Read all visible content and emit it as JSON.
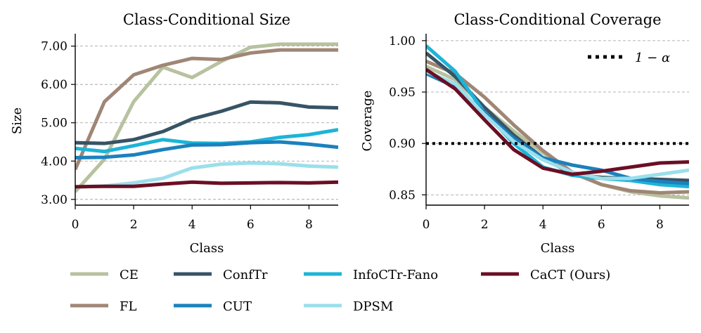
{
  "chart_data": [
    {
      "type": "line",
      "title": "Class-Conditional Size",
      "xlabel": "Class",
      "ylabel": "Size",
      "xlim": [
        0,
        9
      ],
      "ylim": [
        2.85,
        7.25
      ],
      "xticks": [
        0,
        2,
        4,
        6,
        8
      ],
      "xtick_labels": [
        "0",
        "2",
        "4",
        "6",
        "8"
      ],
      "yticks": [
        3.0,
        4.0,
        5.0,
        6.0,
        7.0
      ],
      "ytick_labels": [
        "3.00",
        "4.00",
        "5.00",
        "6.00",
        "7.00"
      ],
      "grid": "horizontal dashed",
      "x": [
        0,
        1,
        2,
        3,
        4,
        5,
        6,
        7,
        8,
        9
      ],
      "series": [
        {
          "name": "CE",
          "color": "#b7c29f",
          "values": [
            3.2,
            4.05,
            5.55,
            6.45,
            6.18,
            6.6,
            6.97,
            7.05,
            7.05,
            7.05
          ]
        },
        {
          "name": "FL",
          "color": "#a08675",
          "values": [
            3.78,
            5.55,
            6.25,
            6.5,
            6.68,
            6.65,
            6.82,
            6.9,
            6.9,
            6.9
          ]
        },
        {
          "name": "ConfTr",
          "color": "#375466",
          "values": [
            4.48,
            4.46,
            4.56,
            4.77,
            5.1,
            5.3,
            5.54,
            5.52,
            5.41,
            5.39
          ]
        },
        {
          "name": "InfoCTr-Fano",
          "color": "#1cb4d8",
          "values": [
            4.33,
            4.25,
            4.4,
            4.56,
            4.47,
            4.46,
            4.5,
            4.62,
            4.69,
            4.82
          ]
        },
        {
          "name": "CUT",
          "color": "#1b81bd",
          "values": [
            4.09,
            4.1,
            4.16,
            4.3,
            4.42,
            4.43,
            4.48,
            4.5,
            4.44,
            4.36
          ]
        },
        {
          "name": "DPSM",
          "color": "#9bdfeb",
          "values": [
            3.32,
            3.35,
            3.43,
            3.55,
            3.82,
            3.92,
            3.95,
            3.93,
            3.87,
            3.84
          ]
        },
        {
          "name": "CaCT (Ours)",
          "color": "#6b0f24",
          "values": [
            3.33,
            3.34,
            3.34,
            3.4,
            3.45,
            3.42,
            3.43,
            3.44,
            3.43,
            3.45
          ]
        }
      ]
    },
    {
      "type": "line",
      "title": "Class-Conditional Coverage",
      "xlabel": "Class",
      "ylabel": "Coverage",
      "xlim": [
        0,
        9
      ],
      "ylim": [
        0.84,
        1.004
      ],
      "xticks": [
        0,
        2,
        4,
        6,
        8
      ],
      "xtick_labels": [
        "0",
        "2",
        "4",
        "6",
        "8"
      ],
      "yticks": [
        0.85,
        0.9,
        0.95,
        1.0
      ],
      "ytick_labels": [
        "0.85",
        "0.90",
        "0.95",
        "1.00"
      ],
      "grid": "horizontal dashed",
      "reference_line": {
        "label": "1 − α",
        "value": 0.9
      },
      "x": [
        0,
        1,
        2,
        3,
        4,
        5,
        6,
        7,
        8,
        9
      ],
      "series": [
        {
          "name": "CE",
          "color": "#b7c29f",
          "values": [
            0.975,
            0.962,
            0.935,
            0.912,
            0.891,
            0.871,
            0.86,
            0.853,
            0.849,
            0.847
          ]
        },
        {
          "name": "FL",
          "color": "#a08675",
          "values": [
            0.98,
            0.968,
            0.945,
            0.918,
            0.893,
            0.872,
            0.86,
            0.854,
            0.852,
            0.853
          ]
        },
        {
          "name": "ConfTr",
          "color": "#375466",
          "values": [
            0.988,
            0.965,
            0.935,
            0.908,
            0.886,
            0.87,
            0.867,
            0.866,
            0.865,
            0.864
          ]
        },
        {
          "name": "InfoCTr-Fano",
          "color": "#1cb4d8",
          "values": [
            0.995,
            0.97,
            0.93,
            0.9,
            0.877,
            0.869,
            0.866,
            0.864,
            0.86,
            0.858
          ]
        },
        {
          "name": "CUT",
          "color": "#1b81bd",
          "values": [
            0.968,
            0.955,
            0.93,
            0.905,
            0.886,
            0.879,
            0.874,
            0.866,
            0.863,
            0.861
          ]
        },
        {
          "name": "DPSM",
          "color": "#9bdfeb",
          "values": [
            0.97,
            0.958,
            0.928,
            0.902,
            0.884,
            0.872,
            0.866,
            0.866,
            0.87,
            0.874
          ]
        },
        {
          "name": "CaCT (Ours)",
          "color": "#6b0f24",
          "values": [
            0.972,
            0.953,
            0.923,
            0.894,
            0.876,
            0.87,
            0.873,
            0.877,
            0.881,
            0.882
          ]
        }
      ]
    }
  ],
  "legend": [
    {
      "label": "CE",
      "color": "#b7c29f"
    },
    {
      "label": "ConfTr",
      "color": "#375466"
    },
    {
      "label": "InfoCTr-Fano",
      "color": "#1cb4d8"
    },
    {
      "label": "CaCT (Ours)",
      "color": "#6b0f24"
    },
    {
      "label": "FL",
      "color": "#a08675"
    },
    {
      "label": "CUT",
      "color": "#1b81bd"
    },
    {
      "label": "DPSM",
      "color": "#9bdfeb"
    }
  ]
}
